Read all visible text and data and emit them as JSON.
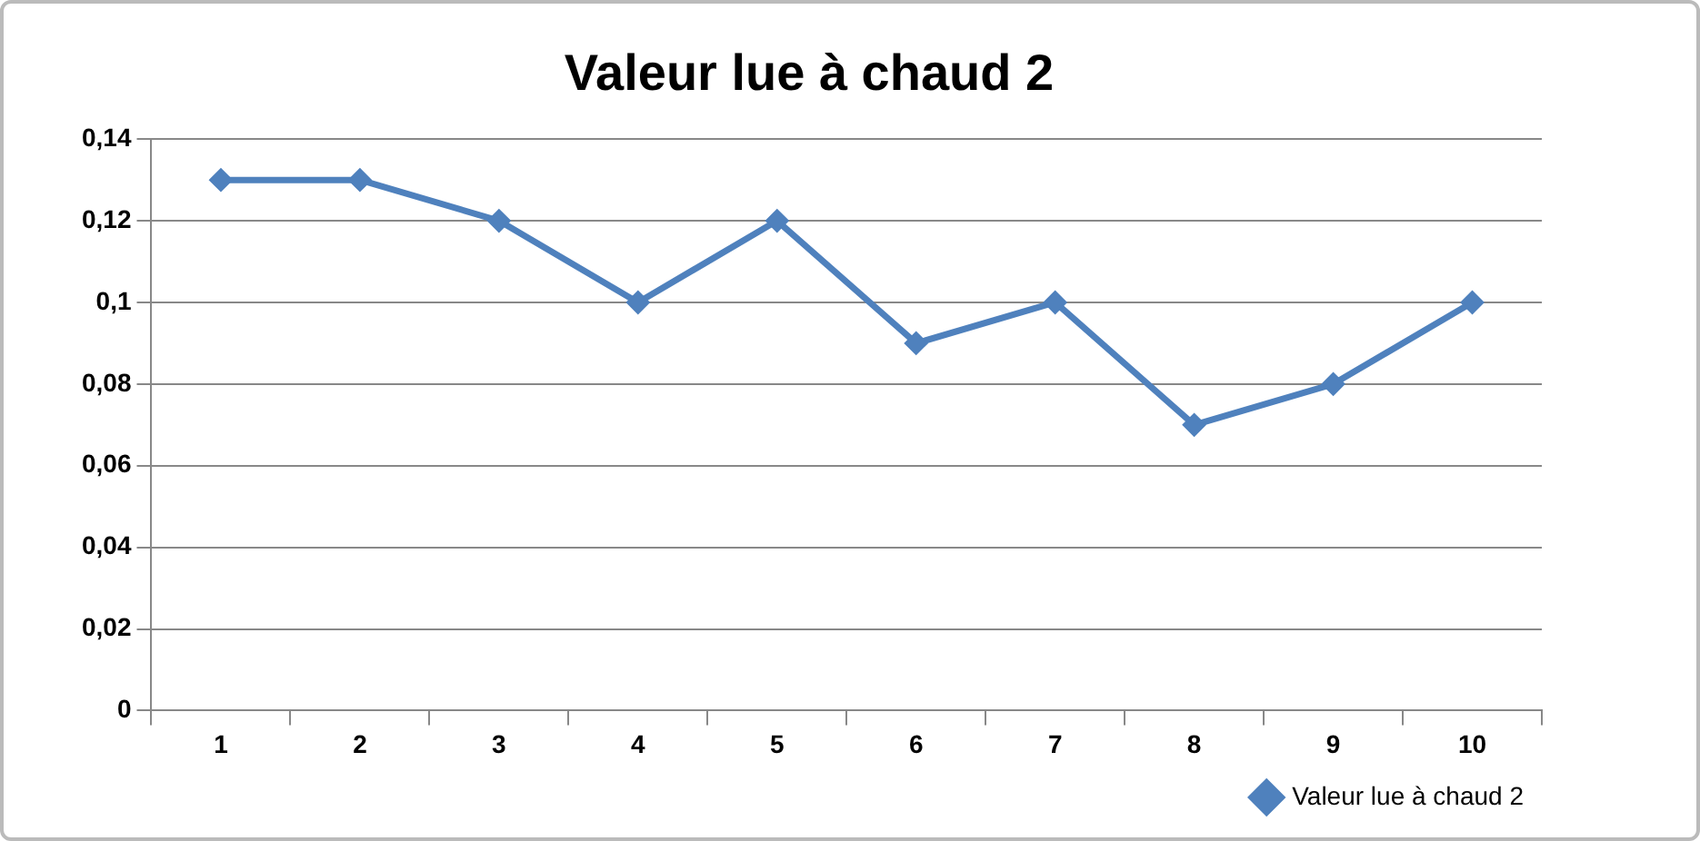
{
  "chart_data": {
    "type": "line",
    "title": "Valeur lue à chaud 2",
    "categories": [
      "1",
      "2",
      "3",
      "4",
      "5",
      "6",
      "7",
      "8",
      "9",
      "10"
    ],
    "series": [
      {
        "name": "Valeur lue à chaud 2",
        "color": "#4f81bd",
        "values": [
          0.13,
          0.13,
          0.12,
          0.1,
          0.12,
          0.09,
          0.1,
          0.07,
          0.08,
          0.1
        ]
      }
    ],
    "ylim": [
      0,
      0.14
    ],
    "yticks": [
      0,
      {
        "value": 0.02,
        "label": "0,02"
      },
      {
        "value": 0.04,
        "label": "0,04"
      },
      {
        "value": 0.06,
        "label": "0,06"
      },
      {
        "value": 0.08,
        "label": "0,08"
      },
      {
        "value": 0.1,
        "label": "0,1"
      },
      {
        "value": 0.12,
        "label": "0,12"
      },
      {
        "value": 0.14,
        "label": "0,14"
      }
    ],
    "grid": "y",
    "legend": "bottom right",
    "marker": "diamond",
    "line_style": "solid"
  }
}
